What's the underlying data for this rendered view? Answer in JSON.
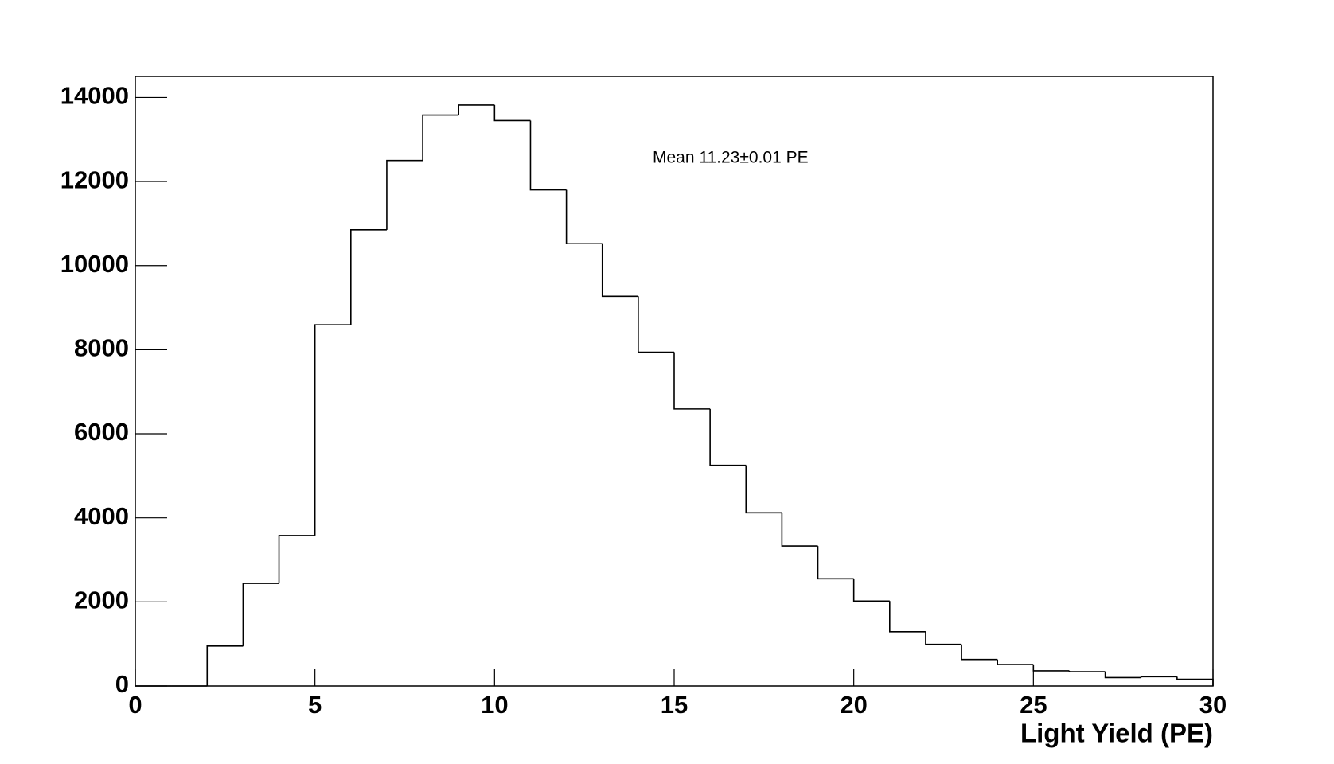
{
  "chart_data": {
    "type": "histogram",
    "annotation": "Mean 11.23±0.01 PE",
    "x_label": "Light Yield (PE)",
    "bins": [
      0,
      1,
      2,
      3,
      4,
      5,
      6,
      7,
      8,
      9,
      10,
      11,
      12,
      13,
      14,
      15,
      16,
      17,
      18,
      19,
      20,
      21,
      22,
      23,
      24,
      25,
      26,
      27,
      28,
      29,
      30
    ],
    "values": [
      0,
      0,
      950,
      2440,
      3580,
      8590,
      10850,
      12500,
      13580,
      13820,
      13450,
      11800,
      10520,
      9270,
      7940,
      6590,
      5250,
      4120,
      3330,
      2550,
      2020,
      1290,
      990,
      630,
      510,
      360,
      340,
      200,
      220,
      160
    ],
    "color": "#000000",
    "xlim": [
      0,
      30
    ],
    "xticks": [
      0,
      5,
      10,
      15,
      20,
      25,
      30
    ],
    "ylim": [
      0,
      14500
    ],
    "yticks": [
      0,
      2000,
      4000,
      6000,
      8000,
      10000,
      12000,
      14000
    ],
    "grid": false
  }
}
